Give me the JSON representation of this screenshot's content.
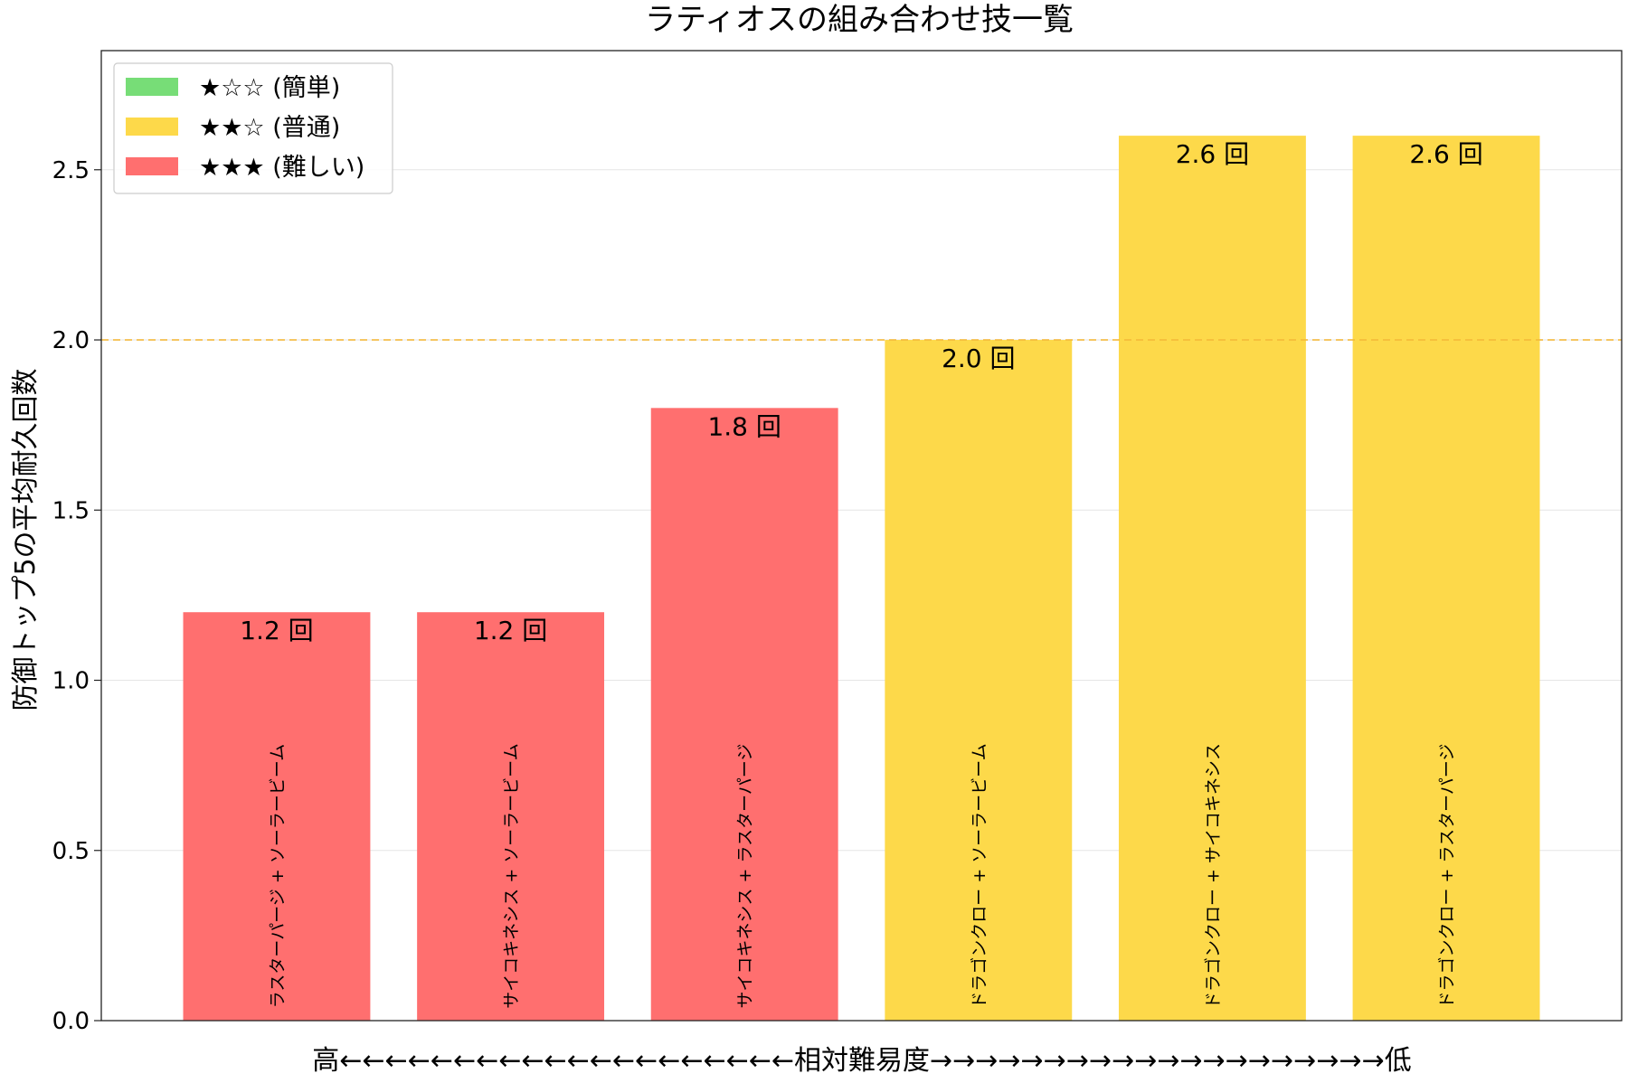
{
  "chart_data": {
    "type": "bar",
    "title": "ラティオスの組み合わせ技一覧",
    "ylabel": "防御トップ5の平均耐久回数",
    "xlabel": "高←←←←←←←←←←←←←←←←←←←←相対難易度→→→→→→→→→→→→→→→→→→→→低",
    "ylim": [
      0,
      2.85
    ],
    "yticks": [
      "0.0",
      "0.5",
      "1.0",
      "1.5",
      "2.0",
      "2.5"
    ],
    "reference_line": 2.0,
    "reference_color": "#f5b93a",
    "grid": "horizontal",
    "legend_position": "top-left",
    "legend": [
      {
        "label": "★☆☆ (簡単)",
        "color": "#77dd77"
      },
      {
        "label": "★★☆ (普通)",
        "color": "#fdd94a"
      },
      {
        "label": "★★★ (難しい)",
        "color": "#ff6f6f"
      }
    ],
    "bars": [
      {
        "name": "ラスターパージ + ソーラービーム",
        "value": 1.2,
        "value_label": "1.2 回",
        "color": "#ff6f6f"
      },
      {
        "name": "サイコキネシス + ソーラービーム",
        "value": 1.2,
        "value_label": "1.2 回",
        "color": "#ff6f6f"
      },
      {
        "name": "サイコキネシス + ラスターパージ",
        "value": 1.8,
        "value_label": "1.8 回",
        "color": "#ff6f6f"
      },
      {
        "name": "ドラゴンクロー + ソーラービーム",
        "value": 2.0,
        "value_label": "2.0 回",
        "color": "#fdd94a"
      },
      {
        "name": "ドラゴンクロー + サイコキネシス",
        "value": 2.6,
        "value_label": "2.6 回",
        "color": "#fdd94a"
      },
      {
        "name": "ドラゴンクロー + ラスターパージ",
        "value": 2.6,
        "value_label": "2.6 回",
        "color": "#fdd94a"
      }
    ]
  }
}
